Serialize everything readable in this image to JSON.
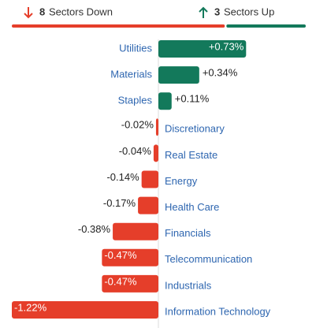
{
  "chart_data": {
    "type": "bar",
    "orientation": "horizontal",
    "header": {
      "down_count": 8,
      "down_label": "Sectors Down",
      "up_count": 3,
      "up_label": "Sectors Up"
    },
    "categories": [
      "Utilities",
      "Materials",
      "Staples",
      "Discretionary",
      "Real Estate",
      "Energy",
      "Health Care",
      "Financials",
      "Telecommunication",
      "Industrials",
      "Information Technology"
    ],
    "values": [
      0.73,
      0.34,
      0.11,
      -0.02,
      -0.04,
      -0.14,
      -0.17,
      -0.38,
      -0.47,
      -0.47,
      -1.22
    ],
    "value_labels": [
      "+0.73%",
      "+0.34%",
      "+0.11%",
      "-0.02%",
      "-0.04%",
      "-0.14%",
      "-0.17%",
      "-0.38%",
      "-0.47%",
      "-0.47%",
      "-1.22%"
    ],
    "colors": {
      "positive": "#13795b",
      "negative": "#e53e2a"
    }
  }
}
